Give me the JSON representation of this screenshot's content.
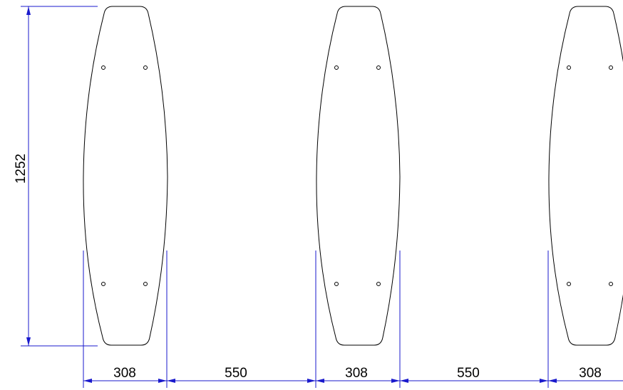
{
  "colors": {
    "outline": "#000000",
    "dimension": "#1a1acc",
    "dimension_text": "#000000",
    "background": "#ffffff"
  },
  "dimensions": {
    "height": "1252",
    "widths": [
      "308",
      "550",
      "308",
      "550",
      "308"
    ]
  }
}
